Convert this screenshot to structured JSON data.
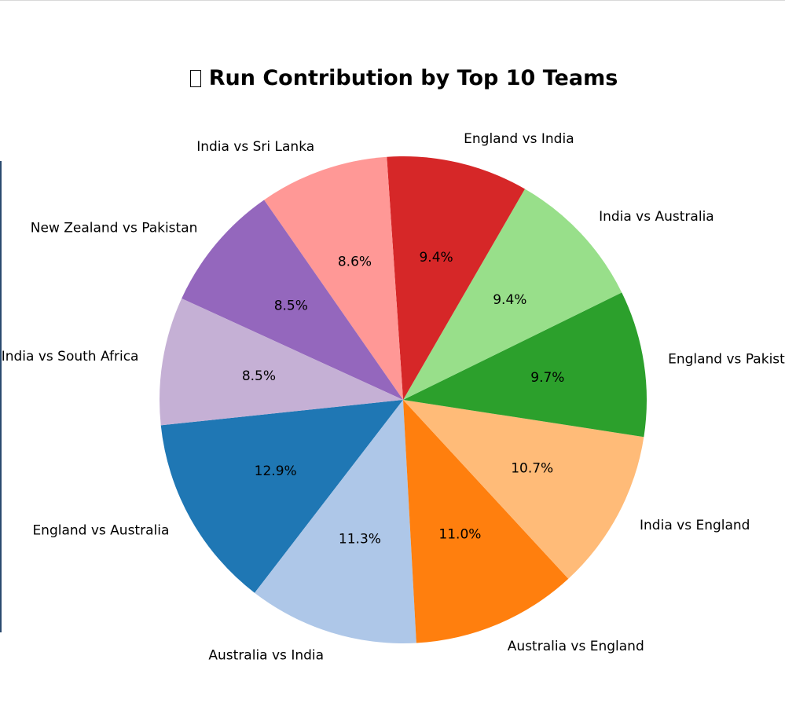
{
  "chart_data": {
    "type": "pie",
    "title": "Run Contribution by Top 10 Teams",
    "title_icon": "missing-glyph-box",
    "startangle_deg": 186,
    "direction": "counterclockwise",
    "label_format": "percent-one-decimal",
    "slices": [
      {
        "label": "England vs Australia",
        "value": 12.9,
        "pct_text": "12.9%",
        "color": "#1f77b4"
      },
      {
        "label": "Australia vs India",
        "value": 11.3,
        "pct_text": "11.3%",
        "color": "#aec7e8"
      },
      {
        "label": "Australia vs England",
        "value": 11.0,
        "pct_text": "11.0%",
        "color": "#ff7f0e"
      },
      {
        "label": "India vs England",
        "value": 10.7,
        "pct_text": "10.7%",
        "color": "#ffbb78"
      },
      {
        "label": "England vs Pakistan",
        "value": 9.7,
        "pct_text": "9.7%",
        "color": "#2ca02c"
      },
      {
        "label": "India vs Australia",
        "value": 9.4,
        "pct_text": "9.4%",
        "color": "#98df8a"
      },
      {
        "label": "England vs India",
        "value": 9.4,
        "pct_text": "9.4%",
        "color": "#d62728"
      },
      {
        "label": "India vs Sri Lanka",
        "value": 8.6,
        "pct_text": "8.6%",
        "color": "#ff9896"
      },
      {
        "label": "New Zealand vs Pakistan",
        "value": 8.5,
        "pct_text": "8.5%",
        "color": "#9467bd"
      },
      {
        "label": "India vs South Africa",
        "value": 8.5,
        "pct_text": "8.5%",
        "color": "#c5b0d5"
      }
    ]
  }
}
